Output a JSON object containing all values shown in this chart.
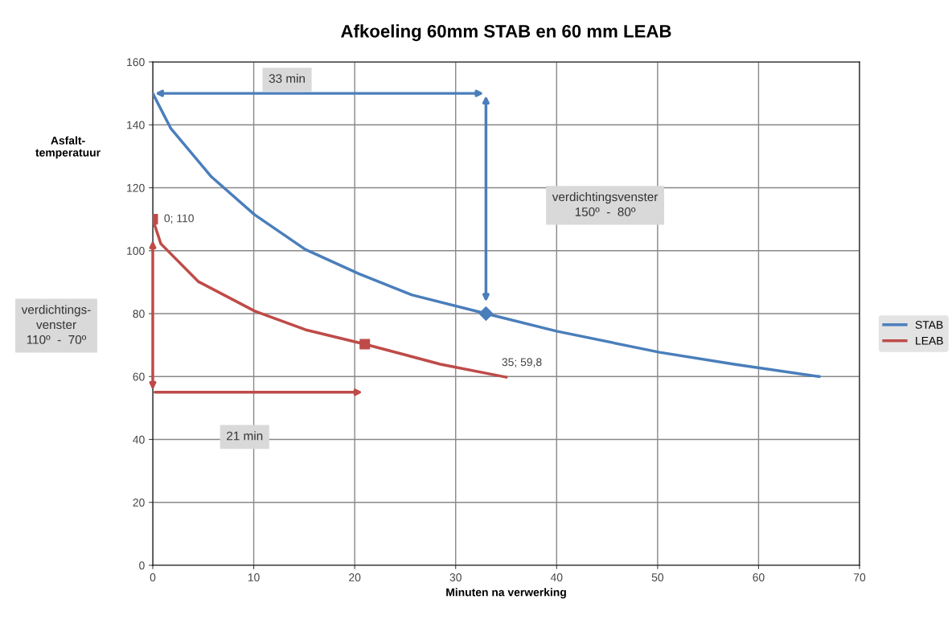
{
  "chart_data": {
    "type": "line",
    "title": "Afkoeling 60mm STAB en 60 mm LEAB",
    "xlabel": "Minuten na verwerking",
    "ylabel": "Asfalt-\ntemperatuur",
    "xlim": [
      0,
      70
    ],
    "xticks": [
      0,
      10,
      20,
      30,
      40,
      50,
      60,
      70
    ],
    "ylim": [
      0,
      160
    ],
    "yticks": [
      0,
      20,
      40,
      60,
      80,
      100,
      120,
      140,
      160
    ],
    "grid": true,
    "legend": "right",
    "marker": "none",
    "line_style": "solid",
    "series": [
      {
        "name": "STAB",
        "color": "#4a7ebb",
        "x": [
          0,
          1.8,
          5.8,
          10.1,
          15.1,
          20.4,
          25.7,
          33,
          40,
          50.2,
          57.6,
          66
        ],
        "values": [
          150,
          138.8,
          123.5,
          111.4,
          100.4,
          92.7,
          85.9,
          80,
          74.4,
          67.7,
          63.9,
          60
        ]
      },
      {
        "name": "LEAB",
        "color": "#be4b48",
        "x": [
          0,
          0.8,
          4.5,
          10.1,
          15.1,
          21,
          28.5,
          35
        ],
        "values": [
          110,
          102.2,
          90.2,
          80.8,
          74.9,
          70.3,
          63.9,
          59.8
        ]
      },
      {
        "type": "scatter",
        "marker": "diamond",
        "color": "#4a7ebb",
        "x": [
          33
        ],
        "values": [
          80
        ]
      },
      {
        "type": "scatter",
        "marker": "square",
        "color": "#be4b48",
        "x": [
          0,
          21
        ],
        "values": [
          110,
          70.3
        ]
      }
    ],
    "annotations": [
      {
        "text": "0; 110",
        "x": 0,
        "y": 110
      },
      {
        "text": "35; 59,8",
        "x": 35,
        "y": 59.8
      },
      "33 min",
      "verdichtingsvenster\n150º  -  80º",
      "21 min",
      "verdichtings-\nvenster\n110º  -  70º"
    ]
  }
}
